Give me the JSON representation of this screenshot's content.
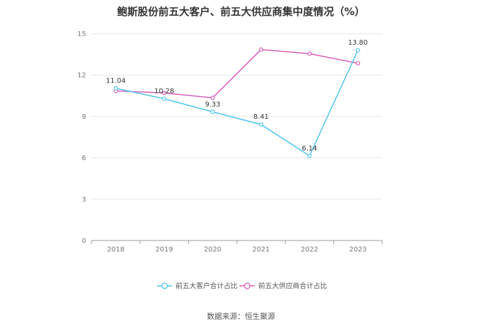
{
  "chart_data": {
    "type": "line",
    "title": "鲍斯股份前五大客户、前五大供应商集中度情况（%）",
    "xlabel": "",
    "ylabel": "",
    "categories": [
      "2018",
      "2019",
      "2020",
      "2021",
      "2022",
      "2023"
    ],
    "ylim": [
      0,
      15
    ],
    "yticks": [
      0,
      3,
      6,
      9,
      12,
      15
    ],
    "grid": true,
    "legend_position": "bottom",
    "series": [
      {
        "name": "前五大客户合计占比",
        "color": "#4fc3f0",
        "values": [
          11.04,
          10.28,
          9.33,
          8.41,
          6.14,
          13.8
        ],
        "labels": [
          "11.04",
          "10.28",
          "9.33",
          "8.41",
          "6.14",
          "13.80"
        ]
      },
      {
        "name": "前五大供应商合计占比",
        "color": "#d85bb9",
        "values": [
          10.85,
          10.7,
          10.35,
          13.85,
          13.55,
          12.85
        ],
        "labels": null
      }
    ]
  },
  "source": "数据来源：恒生聚源"
}
